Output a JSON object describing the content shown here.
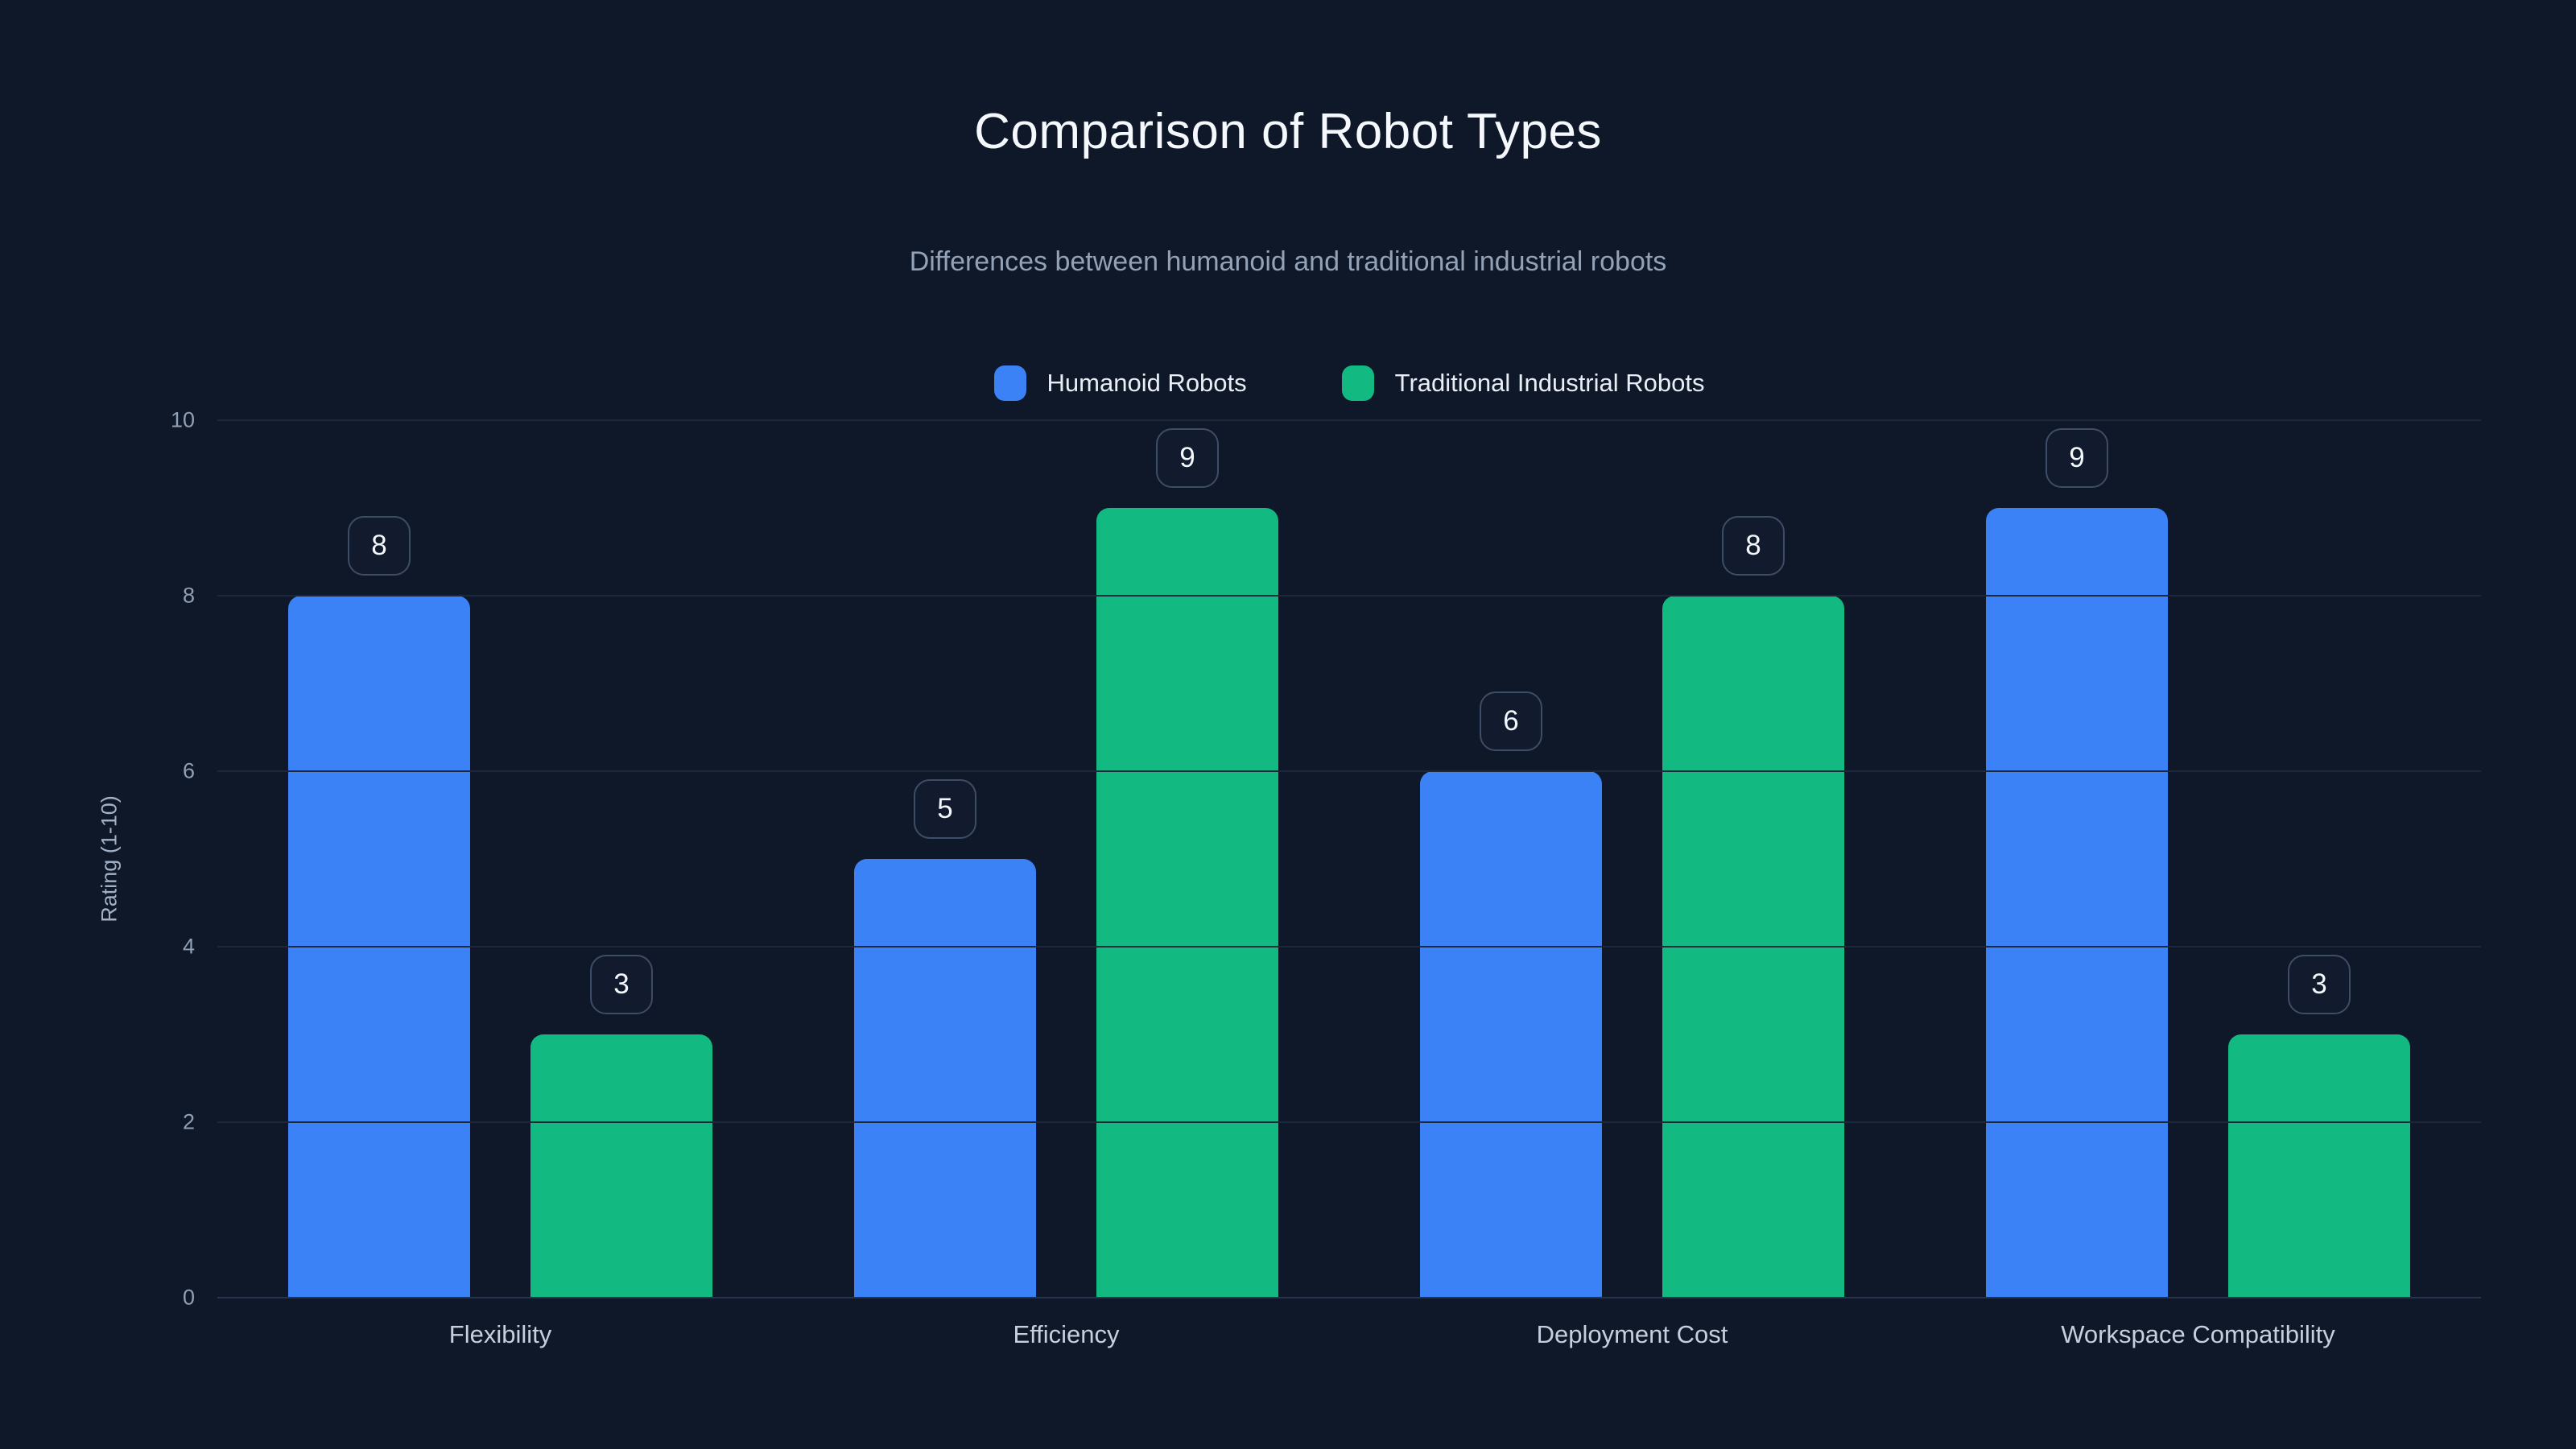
{
  "header": {
    "title": "Comparison of Robot Types",
    "subtitle": "Differences between humanoid and traditional industrial robots"
  },
  "chart_data": {
    "type": "bar",
    "title": "Comparison of Robot Types",
    "subtitle": "Differences between humanoid and traditional industrial robots",
    "categories": [
      "Flexibility",
      "Efficiency",
      "Deployment Cost",
      "Workspace Compatibility"
    ],
    "series": [
      {
        "name": "Humanoid Robots",
        "color": "#3b82f6",
        "values": [
          8,
          5,
          6,
          9
        ]
      },
      {
        "name": "Traditional Industrial Robots",
        "color": "#12b981",
        "values": [
          3,
          9,
          8,
          3
        ]
      }
    ],
    "ylabel": "Rating (1-10)",
    "ylim": [
      0,
      10
    ],
    "yticks": [
      0,
      2,
      4,
      6,
      8,
      10
    ],
    "grid": true,
    "legend_position": "top",
    "value_labels": true,
    "colors": {
      "background": "#0f1828",
      "gridline": "#1c273b",
      "axis_line": "#28344b",
      "title_text": "#f5f8fc",
      "subtitle_text": "#93a2b7",
      "tick_text": "#8fa0b6",
      "category_text": "#c6d0dd",
      "badge_border": "#3e4d66",
      "badge_text": "#f4f7fb"
    }
  }
}
